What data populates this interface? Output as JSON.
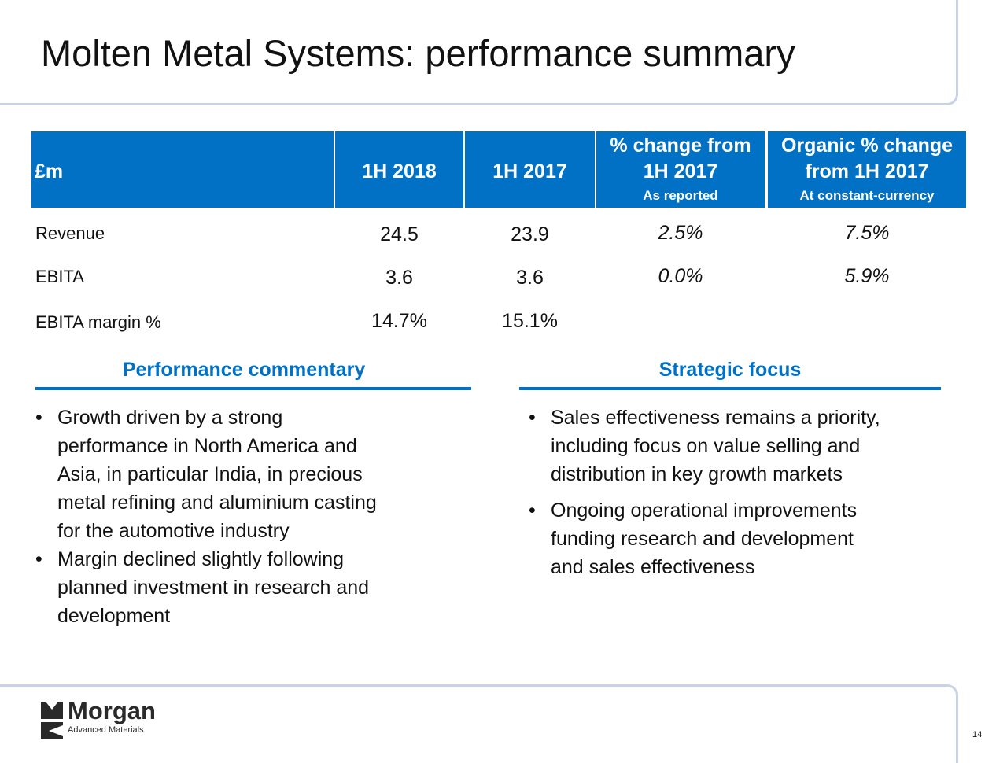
{
  "title": "Molten Metal Systems: performance summary",
  "table": {
    "headers": {
      "currency": "£m",
      "col1": "1H 2018",
      "col2": "1H 2017",
      "col3_line1": "% change from",
      "col3_line2": "1H 2017",
      "col3_sub": "As reported",
      "col4_line1": "Organic % change",
      "col4_line2": "from 1H 2017",
      "col4_sub": "At constant-currency"
    },
    "rows": [
      {
        "label": "Revenue",
        "h2018": "24.5",
        "h2017": "23.9",
        "change": "2.5%",
        "organic": "7.5%"
      },
      {
        "label": "EBITA",
        "h2018": "3.6",
        "h2017": "3.6",
        "change": "0.0%",
        "organic": "5.9%"
      },
      {
        "label": "EBITA margin %",
        "h2018": "14.7%",
        "h2017": "15.1%",
        "change": "",
        "organic": ""
      }
    ]
  },
  "commentary": {
    "heading": "Performance commentary",
    "bullets": [
      {
        "lines": [
          "Growth driven by a strong",
          "performance in North America and",
          "Asia, in particular India, in precious",
          "metal refining and aluminium casting",
          "for the automotive industry"
        ]
      },
      {
        "lines": [
          "Margin declined slightly following",
          "planned investment in research and",
          "development"
        ]
      }
    ]
  },
  "strategic": {
    "heading": "Strategic focus",
    "bullets": [
      {
        "lines": [
          "Sales effectiveness remains a priority,",
          "including focus on value selling and",
          "distribution in key growth markets"
        ]
      },
      {
        "lines": [
          "Ongoing operational improvements",
          "funding research and development",
          "and sales effectiveness"
        ]
      }
    ]
  },
  "logo": {
    "name": "Morgan",
    "subtitle": "Advanced Materials"
  },
  "page_number": "14",
  "colors": {
    "accent": "#0071c5",
    "frame": "#c9d3e6",
    "text": "#111111"
  }
}
